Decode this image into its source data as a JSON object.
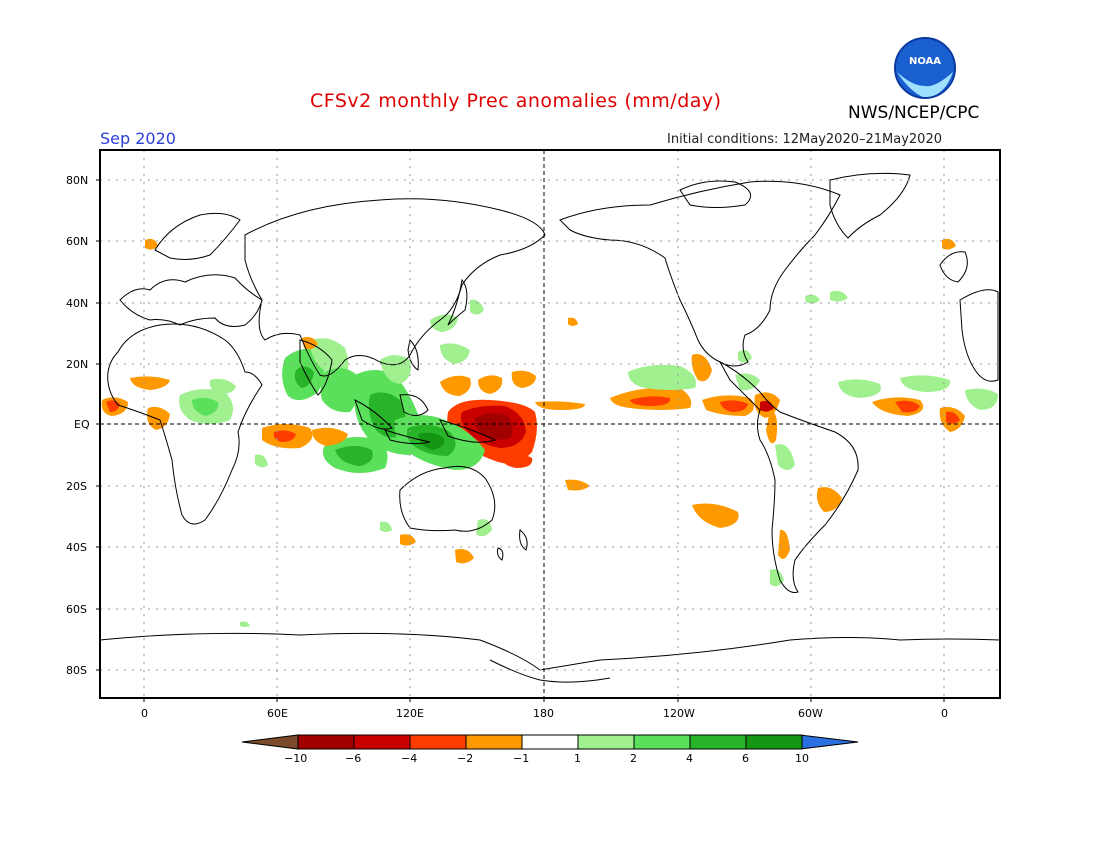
{
  "header": {
    "title": "CFSv2 monthly Prec anomalies (mm/day)",
    "agency": "NWS/NCEP/CPC",
    "month": "Sep 2020",
    "initial_conditions": "Initial conditions: 12May2020–21May2020",
    "logo_text": "NOAA"
  },
  "axes": {
    "lat_labels": [
      "80N",
      "60N",
      "40N",
      "20N",
      "EQ",
      "20S",
      "40S",
      "60S",
      "80S"
    ],
    "lon_labels": [
      "0",
      "60E",
      "120E",
      "180",
      "120W",
      "60W",
      "0"
    ]
  },
  "colorbar": {
    "tick_labels": [
      "−10",
      "−6",
      "−4",
      "−2",
      "−1",
      "1",
      "2",
      "4",
      "6",
      "10"
    ],
    "low_color": "#7a4a2a",
    "colors": [
      "#a00000",
      "#c80000",
      "#ff3c00",
      "#ff9900",
      "#ffffff",
      "#a0f090",
      "#5ae05a",
      "#28b428",
      "#149614"
    ],
    "high_color": "#2a70e0"
  }
}
